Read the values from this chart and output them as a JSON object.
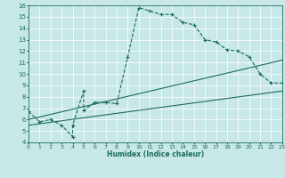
{
  "title": "",
  "xlabel": "Humidex (Indice chaleur)",
  "xlim": [
    0,
    23
  ],
  "ylim": [
    4,
    16
  ],
  "xticks": [
    0,
    1,
    2,
    3,
    4,
    5,
    6,
    7,
    8,
    9,
    10,
    11,
    12,
    13,
    14,
    15,
    16,
    17,
    18,
    19,
    20,
    21,
    22,
    23
  ],
  "yticks": [
    4,
    5,
    6,
    7,
    8,
    9,
    10,
    11,
    12,
    13,
    14,
    15,
    16
  ],
  "bg_color": "#c8e8e8",
  "line_color": "#1a6b5a",
  "grid_color": "#ffffff",
  "line1_x": [
    0,
    1,
    2,
    3,
    4,
    4,
    5,
    5,
    6,
    7,
    8,
    9,
    10,
    11,
    12,
    13,
    14,
    15,
    16,
    17,
    18,
    19,
    20,
    21,
    22,
    23
  ],
  "line1_y": [
    6.7,
    5.8,
    6.0,
    5.5,
    4.5,
    5.5,
    8.5,
    6.8,
    7.5,
    7.5,
    7.4,
    11.5,
    15.8,
    15.5,
    15.2,
    15.2,
    14.5,
    14.3,
    13.0,
    12.8,
    12.1,
    12.0,
    11.5,
    10.0,
    9.2,
    9.2
  ],
  "line2_x": [
    0,
    23
  ],
  "line2_y": [
    6.0,
    11.2
  ],
  "line3_x": [
    0,
    23
  ],
  "line3_y": [
    5.5,
    8.5
  ]
}
